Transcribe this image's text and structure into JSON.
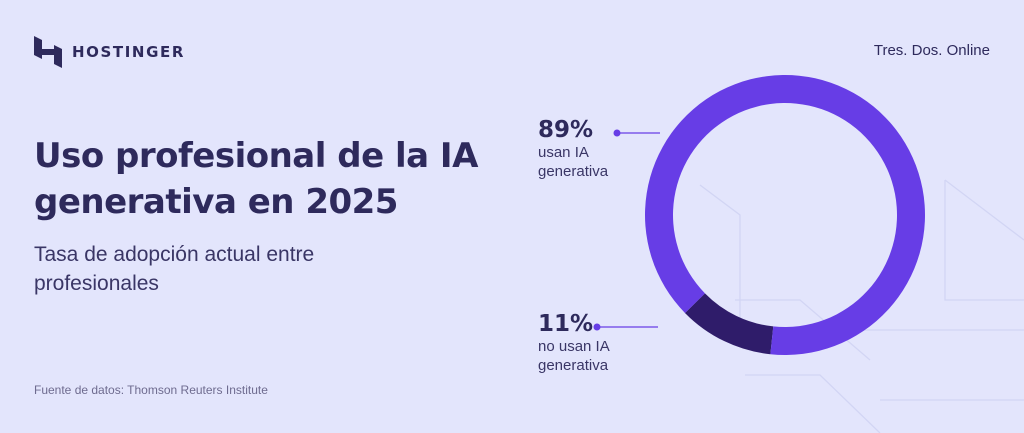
{
  "brand": {
    "name": "HOSTINGER",
    "credit": "Tres. Dos. Online"
  },
  "title": "Uso profesional de la IA generativa en 2025",
  "subtitle": "Tasa de adopción actual entre profesionales",
  "source": "Fuente de datos: Thomson Reuters Institute",
  "colors": {
    "background": "#E3E5FC",
    "primary": "#673DE6",
    "dark": "#2F1C6A",
    "text": "#2E2A5C"
  },
  "chart_data": {
    "type": "pie",
    "donut": true,
    "title": "Uso profesional de la IA generativa en 2025",
    "subtitle": "Tasa de adopción actual entre profesionales",
    "slices": [
      {
        "value": 89,
        "label_value": "89%",
        "label": "usan IA generativa",
        "color": "#673DE6"
      },
      {
        "value": 11,
        "label_value": "11%",
        "label": "no usan IA generativa",
        "color": "#2F1C6A"
      }
    ]
  }
}
